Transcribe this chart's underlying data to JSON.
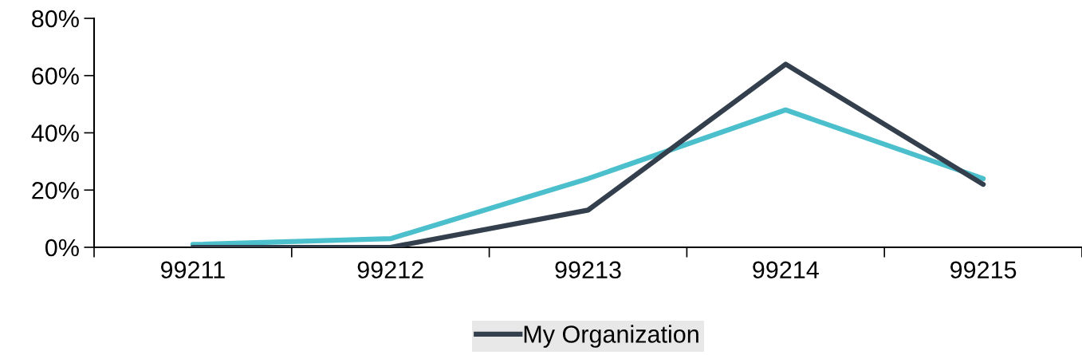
{
  "chart_data": {
    "type": "line",
    "categories": [
      "99211",
      "99212",
      "99213",
      "99214",
      "99215"
    ],
    "series": [
      {
        "name": "My Organization",
        "color": "#333f4c",
        "values": [
          0,
          0,
          13,
          64,
          22
        ]
      },
      {
        "color": "#4bbfcb",
        "values": [
          1,
          3,
          24,
          48,
          24
        ]
      }
    ],
    "ylim": [
      0,
      80
    ],
    "yticks": [
      {
        "value": 0,
        "label": "0%"
      },
      {
        "value": 20,
        "label": "20%"
      },
      {
        "value": 40,
        "label": "40%"
      },
      {
        "value": 60,
        "label": "60%"
      },
      {
        "value": 80,
        "label": "80%"
      }
    ],
    "grid": false,
    "legend": "bottom",
    "marker": "none",
    "line_style": "solid"
  }
}
